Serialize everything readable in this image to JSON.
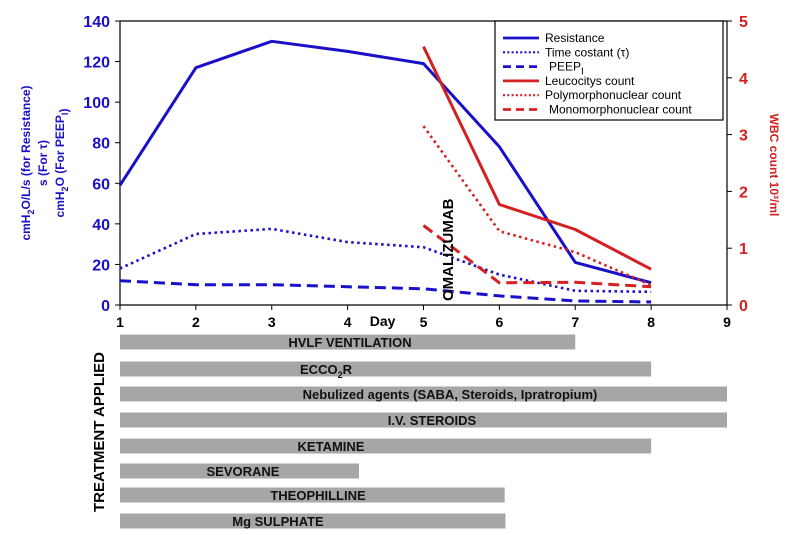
{
  "chart_data": {
    "type": "line",
    "title": "",
    "xlabel": "Day",
    "x_ticks": [
      "1",
      "2",
      "3",
      "4",
      "5",
      "6",
      "7",
      "8",
      "9"
    ],
    "xlim": [
      1,
      9
    ],
    "y_left": {
      "label_lines": [
        "cmH2O/L/s (for Resistance)",
        "s (For τ)",
        "cmH2O (For PEEPi)"
      ],
      "ticks": [
        "0",
        "20",
        "40",
        "60",
        "80",
        "100",
        "120",
        "140"
      ],
      "ylim": [
        0,
        140
      ],
      "color": "#1a10c8"
    },
    "y_right": {
      "label": "WBC count 10³/ml",
      "ticks": [
        "0",
        "1",
        "2",
        "3",
        "4",
        "5"
      ],
      "ylim": [
        0,
        5
      ],
      "color": "#d42020"
    },
    "series": [
      {
        "name": "Resistance",
        "axis": "left",
        "style": "solid",
        "color": "#1a10c8",
        "x": [
          1,
          2,
          3,
          4,
          5,
          6,
          7,
          8
        ],
        "values": [
          59,
          117,
          130,
          125,
          119,
          78,
          21,
          11
        ]
      },
      {
        "name": "Time costant (τ)",
        "axis": "left",
        "style": "dotted",
        "color": "#1a10c8",
        "x": [
          1,
          2,
          3,
          4,
          5,
          6,
          7,
          8
        ],
        "values": [
          18,
          35,
          37.5,
          31,
          28.5,
          15,
          7,
          6.5
        ]
      },
      {
        "name": "PEEPi",
        "axis": "left",
        "style": "dashed",
        "color": "#1a10c8",
        "x": [
          1,
          2,
          3,
          4,
          5,
          6,
          7,
          8
        ],
        "values": [
          12,
          10,
          10,
          9,
          8,
          4.5,
          2,
          1.5
        ]
      },
      {
        "name": "Leucocitys count",
        "axis": "right",
        "style": "solid",
        "color": "#d42020",
        "x": [
          5,
          6,
          7,
          8
        ],
        "values": [
          4.55,
          1.77,
          1.33,
          0.63
        ]
      },
      {
        "name": "Polymorphonuclear count",
        "axis": "right",
        "style": "dotted",
        "color": "#d42020",
        "x": [
          5,
          6,
          7,
          8
        ],
        "values": [
          3.15,
          1.3,
          0.93,
          0.35
        ]
      },
      {
        "name": "Monomorphonuclear count",
        "axis": "right",
        "style": "dashed",
        "color": "#d42020",
        "x": [
          5,
          6,
          7,
          8
        ],
        "values": [
          1.4,
          0.39,
          0.4,
          0.32
        ]
      }
    ],
    "legend": {
      "placement": "top-right",
      "entries": [
        "Resistance",
        "Time costant (τ)",
        "PEEPi",
        "Leucocitys count",
        "Polymorphonuclear count",
        "Monomorphonuclear count"
      ]
    },
    "annotations": [
      {
        "text": "OMALIZUMAB",
        "x": 5.4,
        "orientation": "vertical"
      }
    ],
    "treatments": {
      "title": "TREATMENT APPLIED",
      "bar_color": "#a6a6a6",
      "bars": [
        {
          "label": "HVLF VENTILATION",
          "start": 1,
          "end": 7
        },
        {
          "label": "ECCO2R",
          "start": 1,
          "end": 8
        },
        {
          "label": "Nebulized agents (SABA, Steroids, Ipratropium)",
          "start": 1,
          "end": 9
        },
        {
          "label": "I.V. STEROIDS",
          "start": 1,
          "end": 9
        },
        {
          "label": "KETAMINE",
          "start": 1,
          "end": 8
        },
        {
          "label": "SEVORANE",
          "start": 1,
          "end": 4.15
        },
        {
          "label": "THEOPHILLINE",
          "start": 1,
          "end": 6.07
        },
        {
          "label": "Mg SULPHATE",
          "start": 1,
          "end": 6.08
        }
      ]
    }
  }
}
